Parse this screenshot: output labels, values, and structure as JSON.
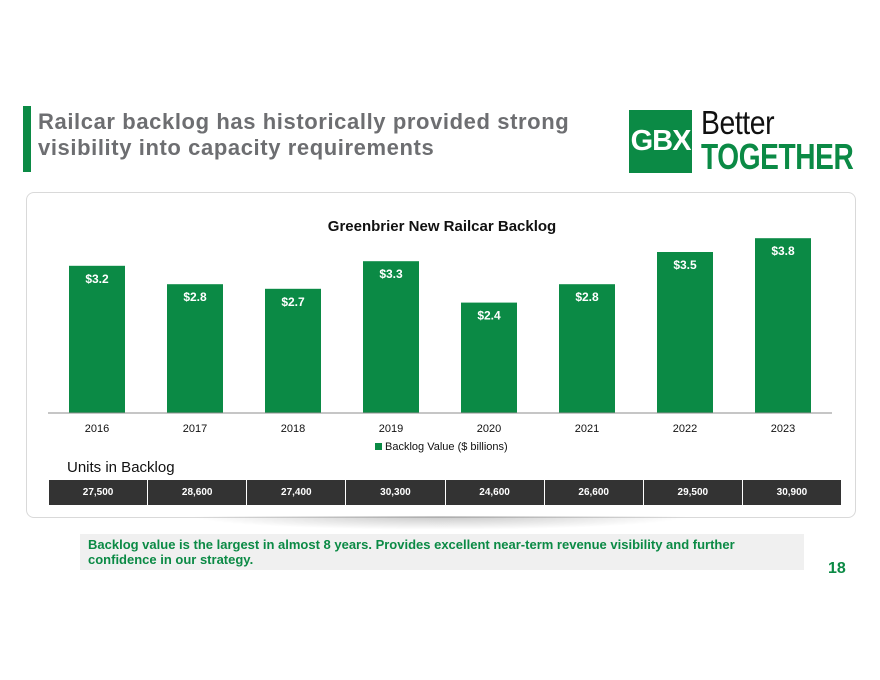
{
  "slide": {
    "title_line1": "Railcar backlog has historically provided strong",
    "title_line2": "visibility into capacity requirements",
    "page_number": "18",
    "accent_color": "#0b8a45"
  },
  "logo": {
    "mark": "GBX",
    "line1": "Better",
    "line2": "TOGETHER"
  },
  "chart_data": {
    "type": "bar",
    "title": "Greenbrier New Railcar Backlog",
    "categories": [
      "2016",
      "2017",
      "2018",
      "2019",
      "2020",
      "2021",
      "2022",
      "2023"
    ],
    "series": [
      {
        "name": "Backlog Value ($ billions)",
        "values": [
          3.2,
          2.8,
          2.7,
          3.3,
          2.4,
          2.8,
          3.5,
          3.8
        ],
        "labels": [
          "$3.2",
          "$2.8",
          "$2.7",
          "$3.3",
          "$2.4",
          "$2.8",
          "$3.5",
          "$3.8"
        ],
        "color": "#0b8a45"
      }
    ],
    "ylim": [
      0,
      4.0
    ],
    "grid": false,
    "legend": "bottom-center"
  },
  "units": {
    "label": "Units in Backlog",
    "values": [
      "27,500",
      "28,600",
      "27,400",
      "30,300",
      "24,600",
      "26,600",
      "29,500",
      "30,900"
    ]
  },
  "callout": {
    "text": "Backlog value is the largest in almost 8 years. Provides excellent near-term revenue visibility and further confidence in our strategy."
  }
}
